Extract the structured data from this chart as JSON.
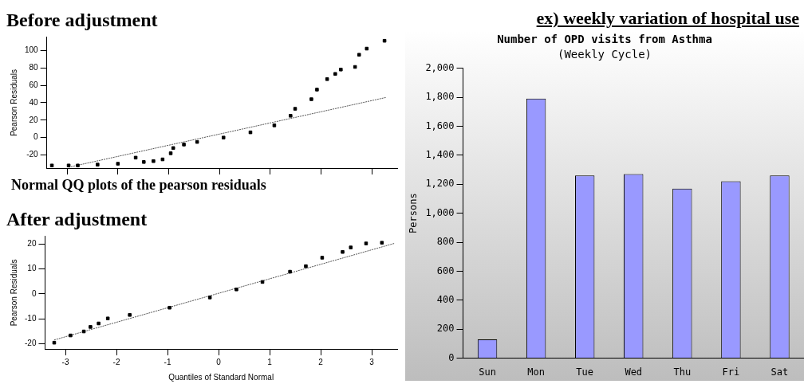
{
  "chart_data": [
    {
      "type": "scatter",
      "title": "Before adjustment",
      "ylabel": "Pearson Residuals",
      "annotations": [
        "Normal QQ plots of the pearson residuals"
      ],
      "xlim": [
        -3.4,
        3.5
      ],
      "xticks": [
        -3,
        -2,
        -1,
        0,
        1,
        2,
        3
      ],
      "ylim": [
        -35,
        115
      ],
      "yticks": [
        -20,
        0,
        20,
        40,
        60,
        80,
        100
      ],
      "tick_labels": "y",
      "grid": false,
      "legend": false,
      "series": [
        {
          "type": "scatter",
          "marker": "square",
          "color": "#000000",
          "x": [
            -3.3,
            -2.97,
            -2.79,
            -2.4,
            -2.0,
            -1.65,
            -1.49,
            -1.3,
            -1.12,
            -0.96,
            -0.91,
            -0.7,
            -0.44,
            0.08,
            0.61,
            1.08,
            1.4,
            1.49,
            1.81,
            1.92,
            2.12,
            2.28,
            2.39,
            2.67,
            2.75,
            2.9,
            3.25
          ],
          "values": [
            -32,
            -32,
            -32,
            -31,
            -30,
            -23,
            -28,
            -27,
            -25,
            -18,
            -12,
            -8,
            -5,
            0,
            6,
            14,
            25,
            33,
            44,
            55,
            67,
            73,
            78,
            81,
            95,
            102,
            111
          ]
        },
        {
          "type": "line",
          "marker": "none",
          "line_style": "dotted",
          "color": "#555555",
          "x": [
            -2.97,
            3.28
          ],
          "values": [
            -34,
            46
          ]
        }
      ]
    },
    {
      "type": "scatter",
      "title": "After adjustment",
      "xlabel": "Quantiles of Standard Normal",
      "ylabel": "Pearson Residuals",
      "xlim": [
        -3.4,
        3.5
      ],
      "xticks": [
        -3,
        -2,
        -1,
        0,
        1,
        2,
        3
      ],
      "ylim": [
        -22,
        23
      ],
      "yticks": [
        -20,
        -10,
        0,
        10,
        20
      ],
      "grid": false,
      "legend": false,
      "series": [
        {
          "type": "scatter",
          "marker": "square",
          "color": "#000000",
          "x": [
            -3.22,
            -2.9,
            -2.64,
            -2.51,
            -2.35,
            -2.17,
            -1.74,
            -0.96,
            -0.17,
            0.35,
            0.86,
            1.4,
            1.71,
            2.03,
            2.43,
            2.59,
            2.89,
            3.2
          ],
          "values": [
            -19.5,
            -16.6,
            -15,
            -13.2,
            -11.8,
            -9.8,
            -8.4,
            -5.5,
            -1.4,
            1.8,
            4.8,
            8.9,
            11.1,
            14.5,
            16.8,
            18.6,
            20.2,
            20.5
          ]
        },
        {
          "type": "line",
          "marker": "none",
          "line_style": "dotted",
          "color": "#555555",
          "x": [
            -3.22,
            3.44
          ],
          "values": [
            -18.4,
            20.2
          ]
        }
      ]
    },
    {
      "type": "bar",
      "title": "Number of OPD visits from Asthma",
      "subtitle": "(Weekly Cycle)",
      "ylabel": "Persons",
      "annotations": [
        "ex) weekly variation of hospital use"
      ],
      "categories": [
        "Sun",
        "Mon",
        "Tue",
        "Wed",
        "Thu",
        "Fri",
        "Sat"
      ],
      "values": [
        130,
        1790,
        1260,
        1270,
        1170,
        1220,
        1260
      ],
      "color": "#9999ff",
      "ylim": [
        0,
        2000
      ],
      "yticks": [
        0,
        200,
        400,
        600,
        800,
        {
          "value": 1000,
          "label": "1,000"
        },
        {
          "value": 1200,
          "label": "1,200"
        },
        {
          "value": 1400,
          "label": "1,400"
        },
        {
          "value": 1600,
          "label": "1,600"
        },
        {
          "value": 1800,
          "label": "1,800"
        },
        {
          "value": 2000,
          "label": "2,000"
        }
      ],
      "grid": false,
      "legend": false
    }
  ]
}
